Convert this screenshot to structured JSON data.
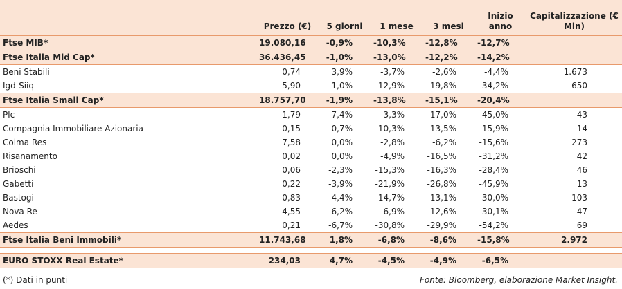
{
  "table": {
    "header": [
      "Prezzo (€)",
      "5 giorni",
      "1 mese",
      "3 mesi",
      "Inizio anno",
      "Capitalizzazione (€ Mln)"
    ],
    "rows": [
      {
        "highlight": true,
        "cells": [
          "Ftse MIB*",
          "19.080,16",
          "-0,9%",
          "-10,3%",
          "-12,8%",
          "-12,7%"
        ]
      },
      {
        "highlight": true,
        "cells": [
          "Ftse Italia Mid Cap*",
          "36.436,45",
          "-1,0%",
          "-13,0%",
          "-12,2%",
          "-14,2%"
        ]
      },
      {
        "highlight": false,
        "cells": [
          "Beni Stabili",
          "0,74",
          "3,9%",
          "-3,7%",
          "-2,6%",
          "-4,4%",
          "1.673"
        ]
      },
      {
        "highlight": false,
        "cells": [
          "Igd-Siiq",
          "5,90",
          "-1,0%",
          "-12,9%",
          "-19,8%",
          "-34,2%",
          "650"
        ]
      },
      {
        "highlight": true,
        "cells": [
          "Ftse Italia Small Cap*",
          "18.757,70",
          "-1,9%",
          "-13,8%",
          "-15,1%",
          "-20,4%"
        ]
      },
      {
        "highlight": false,
        "cells": [
          "Plc",
          "1,79",
          "7,4%",
          "3,3%",
          "-17,0%",
          "-45,0%",
          "43"
        ]
      },
      {
        "highlight": false,
        "cells": [
          "Compagnia Immobiliare Azionaria",
          "0,15",
          "0,7%",
          "-10,3%",
          "-13,5%",
          "-15,9%",
          "14"
        ]
      },
      {
        "highlight": false,
        "cells": [
          "Coima Res",
          "7,58",
          "0,0%",
          "-2,8%",
          "-6,2%",
          "-15,6%",
          "273"
        ]
      },
      {
        "highlight": false,
        "cells": [
          "Risanamento",
          "0,02",
          "0,0%",
          "-4,9%",
          "-16,5%",
          "-31,2%",
          "42"
        ]
      },
      {
        "highlight": false,
        "cells": [
          "Brioschi",
          "0,06",
          "-2,3%",
          "-15,3%",
          "-16,3%",
          "-28,4%",
          "46"
        ]
      },
      {
        "highlight": false,
        "cells": [
          "Gabetti",
          "0,22",
          "-3,9%",
          "-21,9%",
          "-26,8%",
          "-45,9%",
          "13"
        ]
      },
      {
        "highlight": false,
        "cells": [
          "Bastogi",
          "0,83",
          "-4,4%",
          "-14,7%",
          "-13,1%",
          "-30,0%",
          "103"
        ]
      },
      {
        "highlight": false,
        "cells": [
          "Nova Re",
          "4,55",
          "-6,2%",
          "-6,9%",
          "12,6%",
          "-30,1%",
          "47"
        ]
      },
      {
        "highlight": false,
        "cells": [
          "Aedes",
          "0,21",
          "-6,7%",
          "-30,8%",
          "-29,9%",
          "-54,2%",
          "69"
        ]
      },
      {
        "highlight": true,
        "cells": [
          "Ftse Italia Beni Immobili*",
          "11.743,68",
          "1,8%",
          "-6,8%",
          "-8,6%",
          "-15,8%",
          "2.972"
        ]
      },
      {
        "highlight": true,
        "gap": true,
        "cells": [
          "EURO STOXX Real Estate*",
          "234,03",
          "4,7%",
          "-4,5%",
          "-4,9%",
          "-6,5%"
        ]
      }
    ],
    "note": "(*) Dati in punti",
    "source": "Fonte: Bloomberg, elaborazione Market Insight."
  }
}
